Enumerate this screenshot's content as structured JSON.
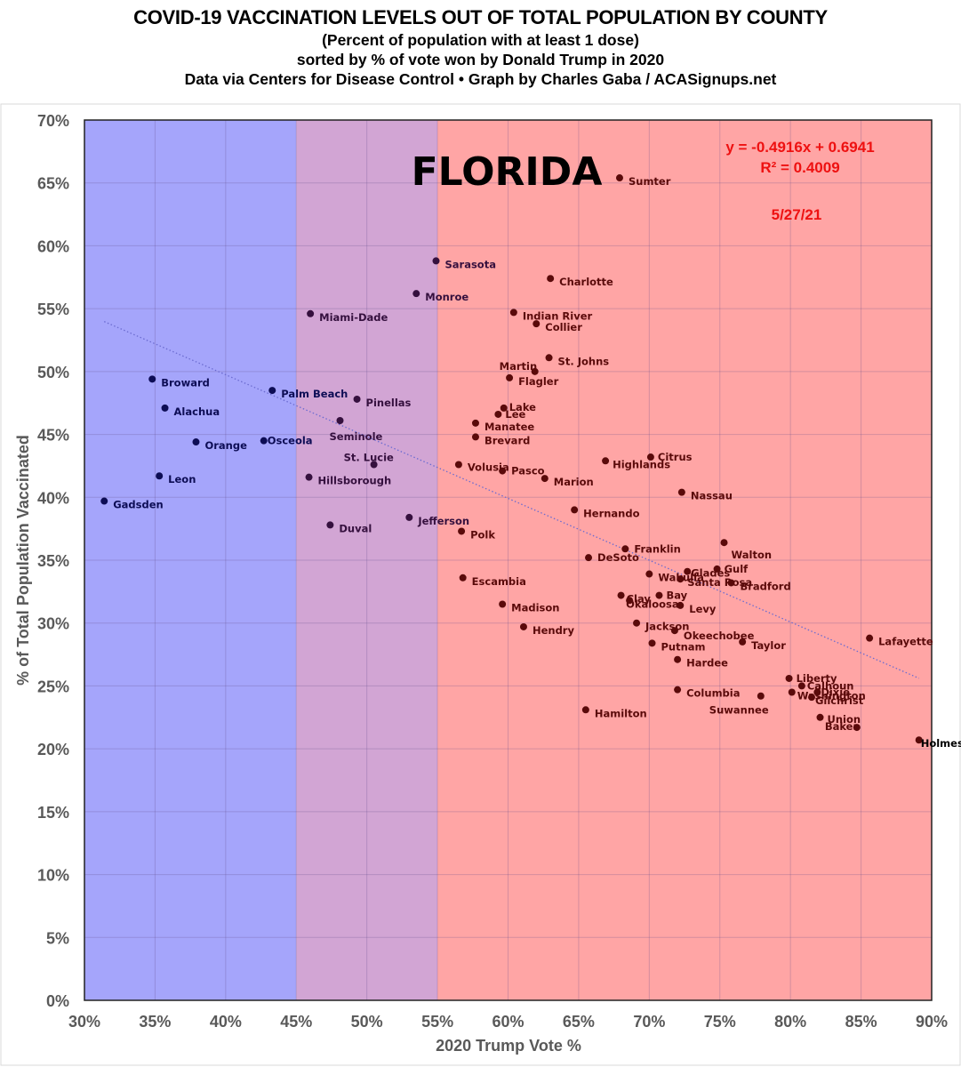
{
  "titles": {
    "line1": "COVID-19 VACCINATION LEVELS OUT OF TOTAL POPULATION BY COUNTY",
    "line2": "(Percent of population with at least 1 dose)",
    "line3": "sorted by % of vote won by Donald Trump in 2020",
    "line4": "Data via Centers for Disease Control • Graph by Charles Gaba / ACASignups.net"
  },
  "colors": {
    "blue_zone": "#a5a5fb",
    "purple_zone": "#d2a5d4",
    "red_zone": "#ffa5a5",
    "blue_point": "#0d0d55",
    "purple_point": "#35103e",
    "red_point": "#5a0a0a",
    "trendline": "#6b6bd0",
    "equation": "#ee1111"
  },
  "chart_data": {
    "type": "scatter",
    "title": "COVID-19 VACCINATION LEVELS OUT OF TOTAL POPULATION BY COUNTY",
    "state_label": "FLORIDA",
    "date_label": "5/27/21",
    "xlabel": "2020 Trump Vote %",
    "ylabel": "% of Total Population Vaccinated",
    "xlim": [
      30,
      90
    ],
    "ylim": [
      0,
      70
    ],
    "x_ticks": [
      "30%",
      "35%",
      "40%",
      "45%",
      "50%",
      "55%",
      "60%",
      "65%",
      "70%",
      "75%",
      "80%",
      "85%",
      "90%"
    ],
    "y_ticks": [
      "0%",
      "5%",
      "10%",
      "15%",
      "20%",
      "25%",
      "30%",
      "35%",
      "40%",
      "45%",
      "50%",
      "55%",
      "60%",
      "65%",
      "70%"
    ],
    "grid": true,
    "zones": [
      {
        "name": "blue",
        "from": 30,
        "to": 45
      },
      {
        "name": "purple",
        "from": 45,
        "to": 55
      },
      {
        "name": "red",
        "from": 55,
        "to": 90
      }
    ],
    "trendline": {
      "equation": "y = -0.4916x + 0.6941",
      "r_squared": "R² = 0.4009",
      "slope": -0.4916,
      "intercept": 0.6941,
      "x_range": [
        31.4,
        89.1
      ]
    },
    "points": [
      {
        "name": "Gadsden",
        "x": 31.4,
        "y": 39.7
      },
      {
        "name": "Broward",
        "x": 34.8,
        "y": 49.4
      },
      {
        "name": "Alachua",
        "x": 35.7,
        "y": 47.1
      },
      {
        "name": "Leon",
        "x": 35.3,
        "y": 41.7
      },
      {
        "name": "Orange",
        "x": 37.9,
        "y": 44.4
      },
      {
        "name": "Osceola",
        "x": 42.7,
        "y": 44.5
      },
      {
        "name": "Palm Beach",
        "x": 43.3,
        "y": 48.5
      },
      {
        "name": "Miami-Dade",
        "x": 46.0,
        "y": 54.6
      },
      {
        "name": "Hillsborough",
        "x": 45.9,
        "y": 41.6
      },
      {
        "name": "Duval",
        "x": 47.4,
        "y": 37.8
      },
      {
        "name": "Seminole",
        "x": 48.1,
        "y": 46.1
      },
      {
        "name": "Pinellas",
        "x": 49.3,
        "y": 47.8
      },
      {
        "name": "St. Lucie",
        "x": 50.5,
        "y": 42.6
      },
      {
        "name": "Monroe",
        "x": 53.5,
        "y": 56.2
      },
      {
        "name": "Jefferson",
        "x": 53.0,
        "y": 38.4
      },
      {
        "name": "Sarasota",
        "x": 54.9,
        "y": 58.8
      },
      {
        "name": "Volusia",
        "x": 56.5,
        "y": 42.6
      },
      {
        "name": "Polk",
        "x": 56.7,
        "y": 37.3
      },
      {
        "name": "Escambia",
        "x": 56.8,
        "y": 33.6
      },
      {
        "name": "Manatee",
        "x": 57.7,
        "y": 45.9
      },
      {
        "name": "Brevard",
        "x": 57.7,
        "y": 44.8
      },
      {
        "name": "Lee",
        "x": 59.3,
        "y": 46.6
      },
      {
        "name": "Lake",
        "x": 59.7,
        "y": 47.1
      },
      {
        "name": "Madison",
        "x": 59.6,
        "y": 31.5
      },
      {
        "name": "Pasco",
        "x": 59.6,
        "y": 42.1
      },
      {
        "name": "Flagler",
        "x": 60.1,
        "y": 49.5
      },
      {
        "name": "Hendry",
        "x": 61.1,
        "y": 29.7
      },
      {
        "name": "Indian River",
        "x": 60.4,
        "y": 54.7
      },
      {
        "name": "Collier",
        "x": 62.0,
        "y": 53.8
      },
      {
        "name": "Martin",
        "x": 61.9,
        "y": 50.0
      },
      {
        "name": "St. Johns",
        "x": 62.9,
        "y": 51.1
      },
      {
        "name": "Marion",
        "x": 62.6,
        "y": 41.5
      },
      {
        "name": "Charlotte",
        "x": 63.0,
        "y": 57.4
      },
      {
        "name": "Hernando",
        "x": 64.7,
        "y": 39.0
      },
      {
        "name": "Hamilton",
        "x": 65.5,
        "y": 23.1
      },
      {
        "name": "DeSoto",
        "x": 65.7,
        "y": 35.2
      },
      {
        "name": "Sumter",
        "x": 67.9,
        "y": 65.4
      },
      {
        "name": "Highlands",
        "x": 66.9,
        "y": 42.9
      },
      {
        "name": "Clay",
        "x": 68.0,
        "y": 32.2
      },
      {
        "name": "Franklin",
        "x": 68.3,
        "y": 35.9
      },
      {
        "name": "Okaloosa",
        "x": 68.6,
        "y": 31.8
      },
      {
        "name": "Jackson",
        "x": 69.1,
        "y": 30.0
      },
      {
        "name": "Wakulla",
        "x": 70.0,
        "y": 33.9
      },
      {
        "name": "Putnam",
        "x": 70.2,
        "y": 28.4
      },
      {
        "name": "Citrus",
        "x": 70.1,
        "y": 43.2
      },
      {
        "name": "Bay",
        "x": 70.7,
        "y": 32.2
      },
      {
        "name": "Okeechobee",
        "x": 71.8,
        "y": 29.4
      },
      {
        "name": "Hardee",
        "x": 72.0,
        "y": 27.1
      },
      {
        "name": "Columbia",
        "x": 72.0,
        "y": 24.7
      },
      {
        "name": "Levy",
        "x": 72.2,
        "y": 31.4
      },
      {
        "name": "Santa Rosa",
        "x": 72.2,
        "y": 33.5
      },
      {
        "name": "Nassau",
        "x": 72.3,
        "y": 40.4
      },
      {
        "name": "Glades",
        "x": 72.7,
        "y": 34.1
      },
      {
        "name": "Walton",
        "x": 75.3,
        "y": 36.4
      },
      {
        "name": "Gulf",
        "x": 74.8,
        "y": 34.3
      },
      {
        "name": "Bradford",
        "x": 75.8,
        "y": 33.2
      },
      {
        "name": "Taylor",
        "x": 76.6,
        "y": 28.5
      },
      {
        "name": "Suwannee",
        "x": 77.9,
        "y": 24.2
      },
      {
        "name": "Liberty",
        "x": 79.9,
        "y": 25.6
      },
      {
        "name": "Washington",
        "x": 80.1,
        "y": 24.5
      },
      {
        "name": "Calhoun",
        "x": 80.8,
        "y": 25.0
      },
      {
        "name": "Gilchrist",
        "x": 81.5,
        "y": 24.1
      },
      {
        "name": "Dixie",
        "x": 81.9,
        "y": 24.5
      },
      {
        "name": "Union",
        "x": 82.1,
        "y": 22.5
      },
      {
        "name": "Baker",
        "x": 84.7,
        "y": 21.7
      },
      {
        "name": "Lafayette",
        "x": 85.6,
        "y": 28.8
      },
      {
        "name": "Holmes",
        "x": 89.1,
        "y": 20.7
      }
    ]
  }
}
